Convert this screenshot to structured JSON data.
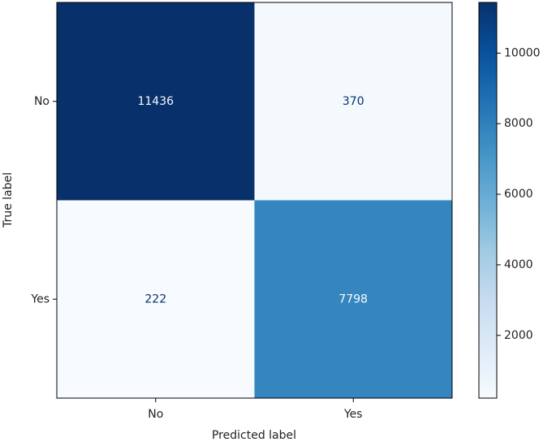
{
  "chart_data": {
    "type": "heatmap",
    "x_label": "Predicted label",
    "y_label": "True label",
    "x_categories": [
      "No",
      "Yes"
    ],
    "y_categories": [
      "No",
      "Yes"
    ],
    "values": [
      [
        11436,
        370
      ],
      [
        222,
        7798
      ]
    ],
    "clim": [
      222,
      11436
    ],
    "cticks": [
      2000,
      4000,
      6000,
      8000,
      10000
    ],
    "colormap": [
      "#f7fbff",
      "#deebf7",
      "#c6dbef",
      "#9ecae1",
      "#6baed6",
      "#4292c6",
      "#2171b5",
      "#08519c",
      "#08306b"
    ]
  }
}
